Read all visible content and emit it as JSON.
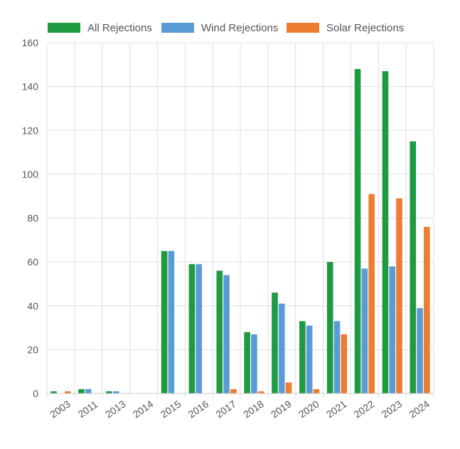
{
  "chart_data": {
    "type": "bar",
    "title": "",
    "xlabel": "",
    "ylabel": "",
    "ylim": [
      0,
      160
    ],
    "yticks": [
      0,
      20,
      40,
      60,
      80,
      100,
      120,
      140,
      160
    ],
    "grid": true,
    "legend_position": "top",
    "categories": [
      "2003",
      "2011",
      "2013",
      "2014",
      "2015",
      "2016",
      "2017",
      "2018",
      "2019",
      "2020",
      "2021",
      "2022",
      "2023",
      "2024"
    ],
    "series": [
      {
        "name": "All Rejections",
        "color": "#1e9a41",
        "values": [
          1,
          2,
          1,
          0,
          65,
          59,
          56,
          28,
          46,
          33,
          60,
          148,
          147,
          115
        ]
      },
      {
        "name": "Wind Rejections",
        "color": "#5b9bd5",
        "values": [
          0,
          2,
          1,
          0,
          65,
          59,
          54,
          27,
          41,
          31,
          33,
          57,
          58,
          39
        ]
      },
      {
        "name": "Solar Rejections",
        "color": "#ed7d31",
        "values": [
          1,
          0,
          0,
          0,
          0,
          0,
          2,
          1,
          5,
          2,
          27,
          91,
          89,
          76
        ]
      }
    ]
  }
}
